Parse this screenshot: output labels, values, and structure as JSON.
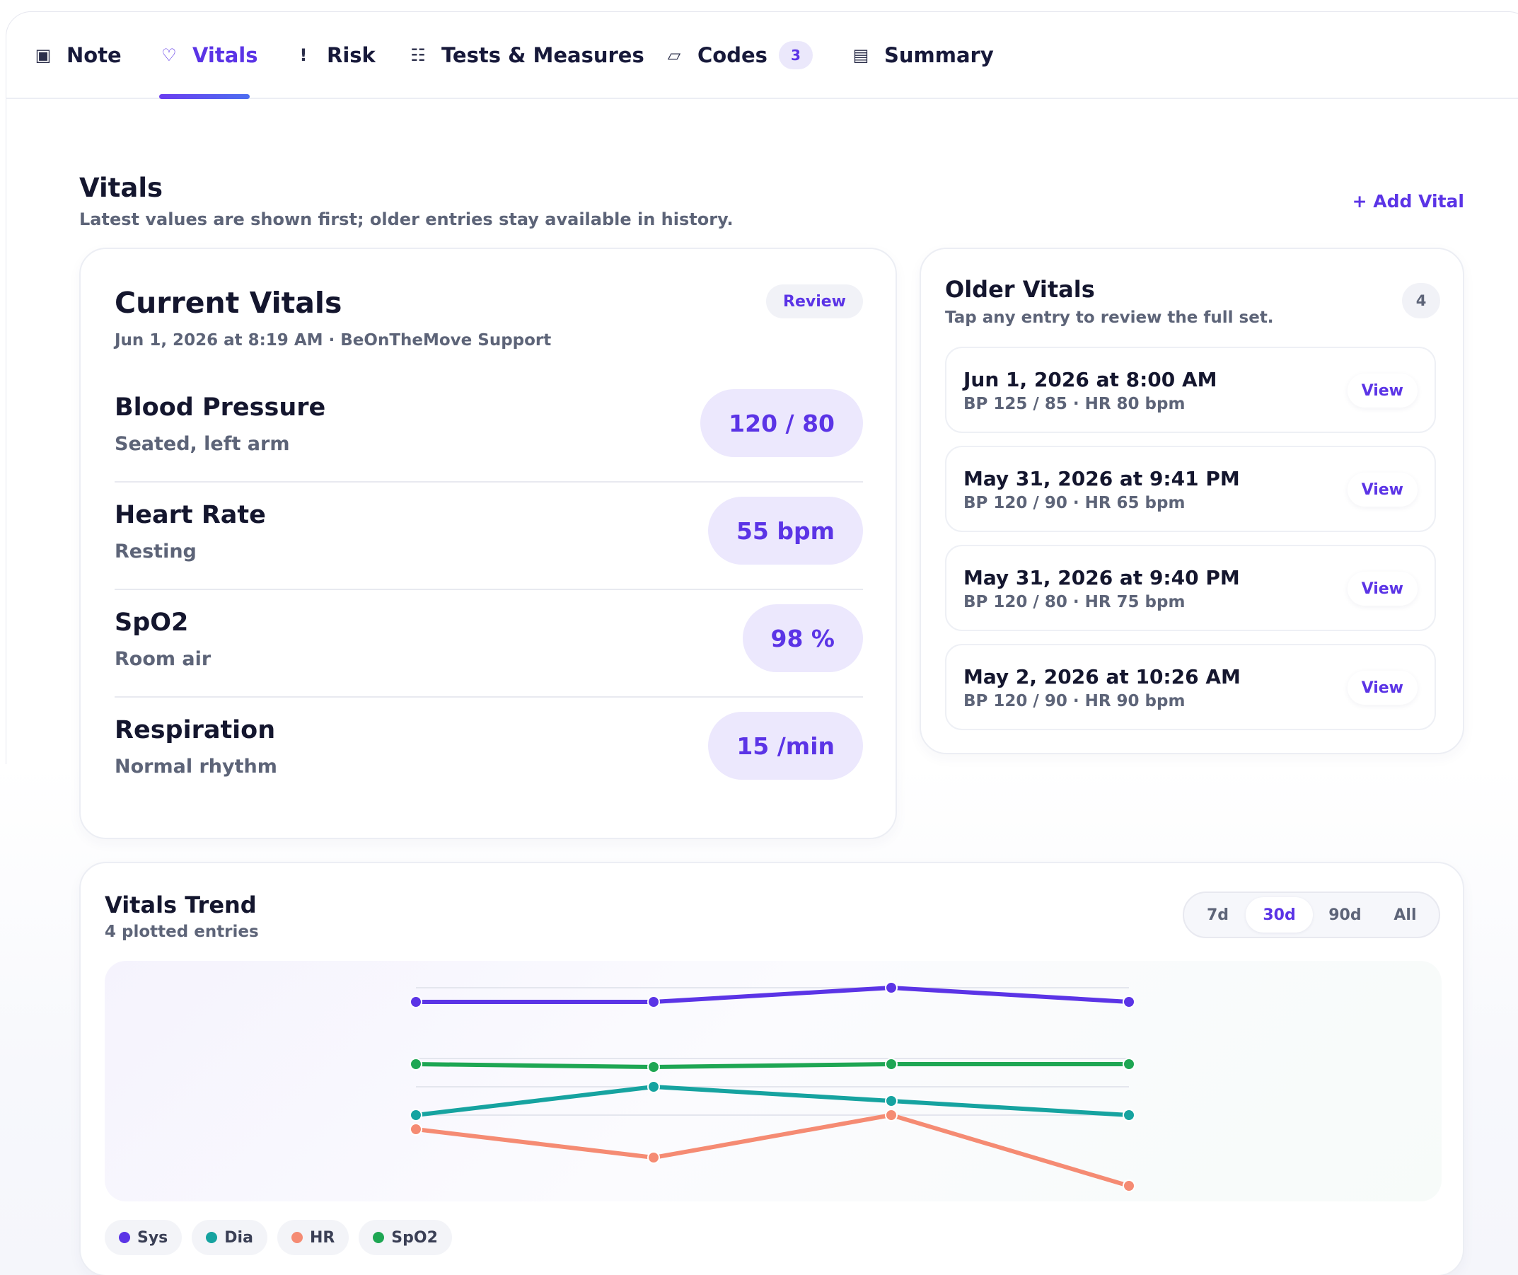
{
  "tabs": [
    {
      "label": "Note",
      "icon": "square-icon"
    },
    {
      "label": "Vitals",
      "icon": "heart-icon"
    },
    {
      "label": "Risk",
      "icon": "exclamation-icon"
    },
    {
      "label": "Tests & Measures",
      "icon": "grid-icon"
    },
    {
      "label": "Codes",
      "icon": "tag-icon",
      "badge": "3"
    },
    {
      "label": "Summary",
      "icon": "document-icon"
    }
  ],
  "header": {
    "title": "Vitals",
    "subtitle": "Latest values are shown first; older entries stay available in history.",
    "add_label": "+ Add Vital"
  },
  "current": {
    "title": "Current Vitals",
    "meta": "Jun 1, 2026 at 8:19 AM · BeOnTheMove Support",
    "review_label": "Review",
    "rows": [
      {
        "label": "Blood Pressure",
        "note": "Seated, left arm",
        "value": "120 / 80"
      },
      {
        "label": "Heart Rate",
        "note": "Resting",
        "value": "55 bpm"
      },
      {
        "label": "SpO2",
        "note": "Room air",
        "value": "98 %"
      },
      {
        "label": "Respiration",
        "note": "Normal rhythm",
        "value": "15 /min"
      }
    ]
  },
  "older": {
    "title": "Older Vitals",
    "subtitle": "Tap any entry to review the full set.",
    "count": "4",
    "view_label": "View",
    "entries": [
      {
        "when": "Jun 1, 2026 at 8:00 AM",
        "what": "BP 125 / 85 · HR 80 bpm"
      },
      {
        "when": "May 31, 2026 at 9:41 PM",
        "what": "BP 120 / 90 · HR 65 bpm"
      },
      {
        "when": "May 31, 2026 at 9:40 PM",
        "what": "BP 120 / 80 · HR 75 bpm"
      },
      {
        "when": "May 2, 2026 at 10:26 AM",
        "what": "BP 120 / 90 · HR 90 bpm"
      }
    ]
  },
  "trend": {
    "title": "Vitals Trend",
    "subtitle": "4 plotted entries",
    "ranges": [
      "7d",
      "30d",
      "90d",
      "All"
    ],
    "selected_range": "30d"
  },
  "chart_data": {
    "type": "line",
    "x": [
      1,
      2,
      3,
      4
    ],
    "series": [
      {
        "name": "Sys",
        "color": "#5b34e6",
        "values": [
          120,
          120,
          125,
          120
        ]
      },
      {
        "name": "Dia",
        "color": "#16a3a0",
        "values": [
          80,
          90,
          85,
          80
        ]
      },
      {
        "name": "HR",
        "color": "#f58b73",
        "values": [
          75,
          65,
          80,
          55
        ]
      },
      {
        "name": "SpO2",
        "color": "#1ea653",
        "values": [
          98,
          97,
          98,
          98
        ]
      }
    ],
    "ylim": [
      50,
      130
    ],
    "grid": true,
    "legend": "bottom-left"
  }
}
